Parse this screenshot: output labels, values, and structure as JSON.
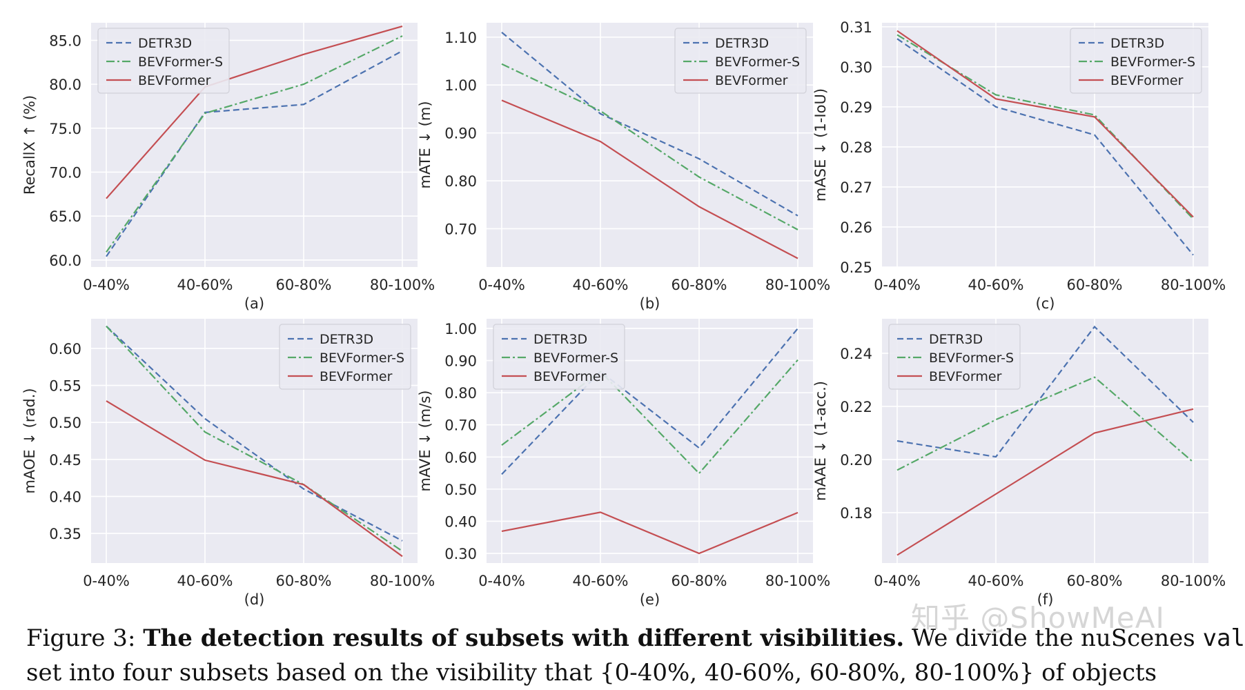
{
  "chart_data": [
    {
      "type": "line",
      "panel_label": "(a)",
      "ylabel": "RecallX ↑ (%)",
      "categories": [
        "0-40%",
        "40-60%",
        "60-80%",
        "80-100%"
      ],
      "ylim": [
        59.2,
        87.0
      ],
      "yticks": [
        60.0,
        65.0,
        70.0,
        75.0,
        80.0,
        85.0
      ],
      "ytick_labels": [
        "60.0",
        "65.0",
        "70.0",
        "75.0",
        "80.0",
        "85.0"
      ],
      "legend": "top-left",
      "grid": true,
      "series": [
        {
          "name": "DETR3D",
          "values": [
            60.4,
            76.8,
            77.7,
            83.8
          ]
        },
        {
          "name": "BEVFormer-S",
          "values": [
            60.9,
            76.7,
            80.0,
            85.5
          ]
        },
        {
          "name": "BEVFormer",
          "values": [
            67.0,
            79.7,
            83.4,
            86.6
          ]
        }
      ]
    },
    {
      "type": "line",
      "panel_label": "(b)",
      "ylabel": "mATE ↓ (m)",
      "categories": [
        "0-40%",
        "40-60%",
        "60-80%",
        "80-100%"
      ],
      "ylim": [
        0.62,
        1.13
      ],
      "yticks": [
        0.7,
        0.8,
        0.9,
        1.0,
        1.1
      ],
      "ytick_labels": [
        "0.70",
        "0.80",
        "0.90",
        "1.00",
        "1.10"
      ],
      "legend": "top-right",
      "grid": true,
      "series": [
        {
          "name": "DETR3D",
          "values": [
            1.11,
            0.94,
            0.846,
            0.727
          ]
        },
        {
          "name": "BEVFormer-S",
          "values": [
            1.044,
            0.946,
            0.808,
            0.698
          ]
        },
        {
          "name": "BEVFormer",
          "values": [
            0.968,
            0.882,
            0.746,
            0.638
          ]
        }
      ]
    },
    {
      "type": "line",
      "panel_label": "(c)",
      "ylabel": "mASE ↓ (1-IoU)",
      "categories": [
        "0-40%",
        "40-60%",
        "60-80%",
        "80-100%"
      ],
      "ylim": [
        0.25,
        0.311
      ],
      "yticks": [
        0.25,
        0.26,
        0.27,
        0.28,
        0.29,
        0.3,
        0.31
      ],
      "ytick_labels": [
        "0.25",
        "0.26",
        "0.27",
        "0.28",
        "0.29",
        "0.30",
        "0.31"
      ],
      "legend": "top-right",
      "grid": true,
      "series": [
        {
          "name": "DETR3D",
          "values": [
            0.307,
            0.29,
            0.283,
            0.253
          ]
        },
        {
          "name": "BEVFormer-S",
          "values": [
            0.308,
            0.293,
            0.288,
            0.262
          ]
        },
        {
          "name": "BEVFormer",
          "values": [
            0.309,
            0.292,
            0.2875,
            0.2625
          ]
        }
      ]
    },
    {
      "type": "line",
      "panel_label": "(d)",
      "ylabel": "mAOE ↓  (rad.)",
      "categories": [
        "0-40%",
        "40-60%",
        "60-80%",
        "80-100%"
      ],
      "ylim": [
        0.31,
        0.64
      ],
      "yticks": [
        0.35,
        0.4,
        0.45,
        0.5,
        0.55,
        0.6
      ],
      "ytick_labels": [
        "0.35",
        "0.40",
        "0.45",
        "0.50",
        "0.55",
        "0.60"
      ],
      "legend": "top-right",
      "grid": true,
      "series": [
        {
          "name": "DETR3D",
          "values": [
            0.63,
            0.505,
            0.41,
            0.34
          ]
        },
        {
          "name": "BEVFormer-S",
          "values": [
            0.63,
            0.487,
            0.416,
            0.326
          ]
        },
        {
          "name": "BEVFormer",
          "values": [
            0.529,
            0.449,
            0.416,
            0.319
          ]
        }
      ]
    },
    {
      "type": "line",
      "panel_label": "(e)",
      "ylabel": "mAVE ↓ (m/s)",
      "categories": [
        "0-40%",
        "40-60%",
        "60-80%",
        "80-100%"
      ],
      "ylim": [
        0.27,
        1.03
      ],
      "yticks": [
        0.3,
        0.4,
        0.5,
        0.6,
        0.7,
        0.8,
        0.9,
        1.0
      ],
      "ytick_labels": [
        "0.30",
        "0.40",
        "0.50",
        "0.60",
        "0.70",
        "0.80",
        "0.90",
        "1.00"
      ],
      "legend": "top-left",
      "grid": true,
      "series": [
        {
          "name": "DETR3D",
          "values": [
            0.546,
            0.866,
            0.628,
            1.0
          ]
        },
        {
          "name": "BEVFormer-S",
          "values": [
            0.637,
            0.866,
            0.549,
            0.902
          ]
        },
        {
          "name": "BEVFormer",
          "values": [
            0.369,
            0.428,
            0.3,
            0.427
          ]
        }
      ]
    },
    {
      "type": "line",
      "panel_label": "(f)",
      "ylabel": "mAAE ↓ (1-acc.)",
      "categories": [
        "0-40%",
        "40-60%",
        "60-80%",
        "80-100%"
      ],
      "ylim": [
        0.161,
        0.253
      ],
      "yticks": [
        0.18,
        0.2,
        0.22,
        0.24
      ],
      "ytick_labels": [
        "0.18",
        "0.20",
        "0.22",
        "0.24"
      ],
      "legend": "top-left",
      "grid": true,
      "series": [
        {
          "name": "DETR3D",
          "values": [
            0.207,
            0.201,
            0.25,
            0.214
          ]
        },
        {
          "name": "BEVFormer-S",
          "values": [
            0.196,
            0.215,
            0.231,
            0.199
          ]
        },
        {
          "name": "BEVFormer",
          "values": [
            0.164,
            0.187,
            0.21,
            0.219
          ]
        }
      ]
    }
  ],
  "series_styles": [
    {
      "name": "DETR3D",
      "color": "#4c72b0",
      "dash": "dashed"
    },
    {
      "name": "BEVFormer-S",
      "color": "#55a868",
      "dash": "dashdot"
    },
    {
      "name": "BEVFormer",
      "color": "#c44e52",
      "dash": "solid"
    }
  ],
  "colors": {
    "plot_background": "#eaeaf2",
    "grid": "#ffffff",
    "text": "#262626"
  },
  "caption": {
    "label": "Figure 3:",
    "bold": "The detection results of subsets with different visibilities.",
    "text": "We divide the nuScenes",
    "mono": "val",
    "line2": "set into four subsets based on the visibility that {0-40%, 40-60%, 60-80%, 80-100%} of objects"
  },
  "watermark": "知乎 @ShowMeAI"
}
